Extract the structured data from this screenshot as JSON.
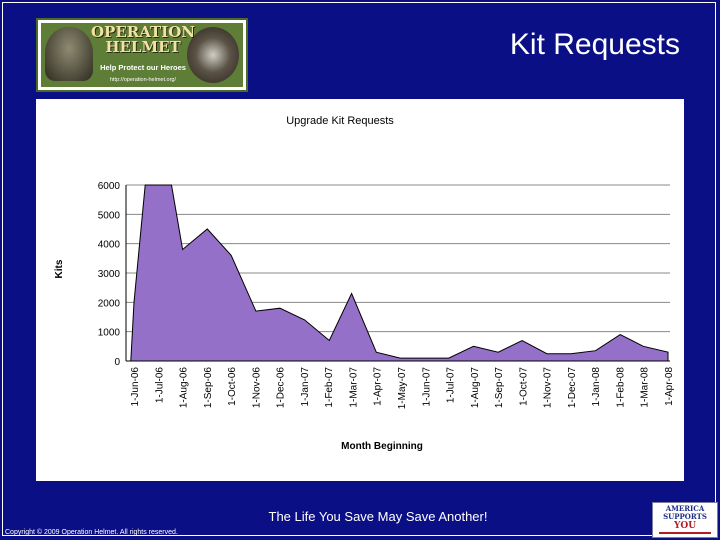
{
  "slide": {
    "title": "Kit Requests",
    "tagline": "The Life You Save May Save Another!",
    "copyright": "Copyright © 2009 Operation Helmet.  All rights reserved."
  },
  "logo": {
    "title": "OPERATION HELMET",
    "tagline": "Help Protect our Heroes",
    "url": "http://operation-helmet.org/"
  },
  "badge": {
    "line1": "AMERICA",
    "line2": "SUPPORTS",
    "line3": "YOU"
  },
  "colors": {
    "background": "#0b0f86",
    "area_fill": "#9470c9",
    "area_stroke": "#000000"
  },
  "chart_data": {
    "type": "area",
    "title": "Upgrade Kit Requests",
    "xlabel": "Month Beginning",
    "ylabel": "Kits",
    "ylim": [
      0,
      6000
    ],
    "yticks": [
      0,
      1000,
      2000,
      3000,
      4000,
      5000,
      6000
    ],
    "grid": true,
    "legend": "none",
    "categories": [
      "1-Jun-06",
      "1-Jul-06",
      "1-Aug-06",
      "1-Sep-06",
      "1-Oct-06",
      "1-Nov-06",
      "1-Dec-06",
      "1-Jan-07",
      "1-Feb-07",
      "1-Mar-07",
      "1-Apr-07",
      "1-May-07",
      "1-Jun-07",
      "1-Jul-07",
      "1-Aug-07",
      "1-Sep-07",
      "1-Oct-07",
      "1-Nov-07",
      "1-Dec-07",
      "1-Jan-08",
      "1-Feb-08",
      "1-Mar-08",
      "1-Apr-08"
    ],
    "x": [
      "2006-05-28",
      "2006-06-01",
      "2006-06-15",
      "2006-07-01",
      "2006-07-18",
      "2006-08-01",
      "2006-09-01",
      "2006-10-01",
      "2006-11-01",
      "2006-12-01",
      "2007-01-01",
      "2007-02-01",
      "2007-03-01",
      "2007-04-01",
      "2007-05-01",
      "2007-06-01",
      "2007-07-01",
      "2007-08-01",
      "2007-09-01",
      "2007-10-01",
      "2007-11-01",
      "2007-12-01",
      "2008-01-01",
      "2008-02-01",
      "2008-03-01",
      "2008-04-01"
    ],
    "values": [
      0,
      2000,
      6000,
      6000,
      6000,
      3800,
      4500,
      3600,
      1700,
      1800,
      1400,
      700,
      2300,
      300,
      100,
      100,
      100,
      500,
      300,
      700,
      250,
      250,
      350,
      900,
      500,
      300
    ]
  }
}
